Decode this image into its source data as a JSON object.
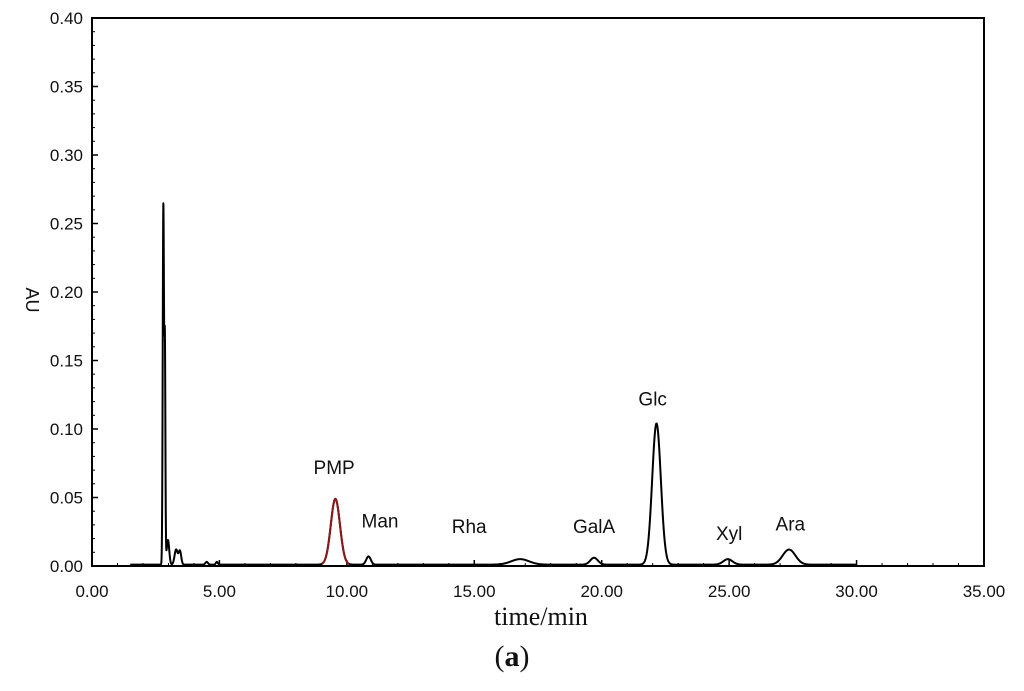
{
  "chart_data": {
    "type": "line",
    "xlabel": "time/min",
    "ylabel": "AU",
    "xlim": [
      0,
      35
    ],
    "ylim": [
      0,
      0.4
    ],
    "x_ticks": [
      "0.00",
      "5.00",
      "10.00",
      "15.00",
      "20.00",
      "25.00",
      "30.00",
      "35.00"
    ],
    "y_ticks": [
      "0.00",
      "0.05",
      "0.10",
      "0.15",
      "0.20",
      "0.25",
      "0.30",
      "0.35",
      "0.40"
    ],
    "grid": false,
    "line_color": "#000000",
    "highlight_color": "#8b1a1a",
    "baseline": 0.001,
    "x_end": 30.0,
    "peaks": [
      {
        "x": 2.8,
        "height": 0.262,
        "width": 0.025
      },
      {
        "x": 2.86,
        "height": 0.155,
        "width": 0.02
      },
      {
        "x": 2.98,
        "height": 0.018,
        "width": 0.05
      },
      {
        "x": 3.3,
        "height": 0.011,
        "width": 0.06
      },
      {
        "x": 3.45,
        "height": 0.01,
        "width": 0.05
      },
      {
        "x": 4.5,
        "height": 0.002,
        "width": 0.05
      },
      {
        "x": 4.9,
        "height": 0.002,
        "width": 0.04
      },
      {
        "x": 9.55,
        "height": 0.048,
        "width": 0.18
      },
      {
        "x": 10.85,
        "height": 0.006,
        "width": 0.09
      },
      {
        "x": 16.8,
        "height": 0.004,
        "width": 0.35
      },
      {
        "x": 19.7,
        "height": 0.005,
        "width": 0.15
      },
      {
        "x": 22.15,
        "height": 0.103,
        "width": 0.17
      },
      {
        "x": 24.95,
        "height": 0.004,
        "width": 0.18
      },
      {
        "x": 27.35,
        "height": 0.011,
        "width": 0.25
      }
    ],
    "annotations": [
      {
        "text": "PMP",
        "x": 9.5,
        "y": 0.067
      },
      {
        "text": "Man",
        "x": 11.3,
        "y": 0.028
      },
      {
        "text": "Rha",
        "x": 14.8,
        "y": 0.024
      },
      {
        "text": "GalA",
        "x": 19.7,
        "y": 0.024
      },
      {
        "text": "Glc",
        "x": 22.0,
        "y": 0.117
      },
      {
        "text": "Xyl",
        "x": 25.0,
        "y": 0.019
      },
      {
        "text": "Ara",
        "x": 27.4,
        "y": 0.026
      }
    ]
  },
  "caption": {
    "open": "(",
    "label": "a",
    "close": ")"
  }
}
